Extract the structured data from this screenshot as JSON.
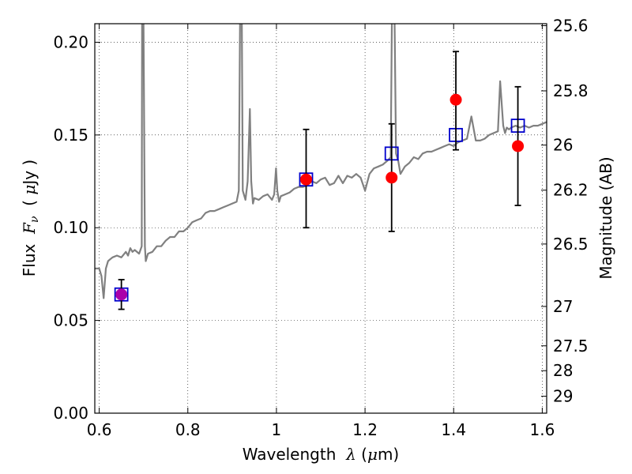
{
  "chart_data": {
    "type": "line",
    "xlabel": {
      "pre": "Wavelength  ",
      "sym": "λ",
      "post": " (",
      "mu": "μ",
      "unit": "m)"
    },
    "ylabel": {
      "pre": "Flux  ",
      "sym": "F",
      "sub": "ν",
      "post": "  ( ",
      "mu": "μ",
      "unit": "Jy )"
    },
    "y2label": "Magnitude (AB)",
    "xlim": [
      0.59,
      1.61
    ],
    "ylim": [
      0.0,
      0.21
    ],
    "grid": true,
    "x_ticks": [
      {
        "v": 0.6,
        "label": "0.6"
      },
      {
        "v": 0.8,
        "label": "0.8"
      },
      {
        "v": 1.0,
        "label": "1"
      },
      {
        "v": 1.2,
        "label": "1.2"
      },
      {
        "v": 1.4,
        "label": "1.4"
      },
      {
        "v": 1.6,
        "label": "1.6"
      }
    ],
    "y_ticks": [
      {
        "v": 0.0,
        "label": "0.00"
      },
      {
        "v": 0.05,
        "label": "0.05"
      },
      {
        "v": 0.1,
        "label": "0.10"
      },
      {
        "v": 0.15,
        "label": "0.15"
      },
      {
        "v": 0.2,
        "label": "0.20"
      }
    ],
    "mag_ticks": [
      {
        "mag": 25.6,
        "label": "25.6"
      },
      {
        "mag": 25.8,
        "label": "25.8"
      },
      {
        "mag": 26.0,
        "label": "26"
      },
      {
        "mag": 26.2,
        "label": "26.2"
      },
      {
        "mag": 26.5,
        "label": "26.5"
      },
      {
        "mag": 27.0,
        "label": "27"
      },
      {
        "mag": 27.5,
        "label": "27.5"
      },
      {
        "mag": 28.0,
        "label": "28"
      },
      {
        "mag": 29.0,
        "label": "29"
      }
    ],
    "series": [
      {
        "kind": "spectrum",
        "color": "#808080",
        "x": [
          0.59,
          0.6,
          0.605,
          0.61,
          0.615,
          0.62,
          0.625,
          0.63,
          0.64,
          0.65,
          0.66,
          0.665,
          0.67,
          0.675,
          0.68,
          0.69,
          0.696,
          0.697,
          0.699,
          0.703,
          0.705,
          0.71,
          0.72,
          0.73,
          0.74,
          0.75,
          0.76,
          0.77,
          0.78,
          0.79,
          0.8,
          0.81,
          0.82,
          0.83,
          0.84,
          0.85,
          0.86,
          0.87,
          0.88,
          0.89,
          0.9,
          0.91,
          0.915,
          0.919,
          0.921,
          0.924,
          0.93,
          0.935,
          0.94,
          0.943,
          0.947,
          0.95,
          0.96,
          0.97,
          0.98,
          0.99,
          0.995,
          0.999,
          1.002,
          1.006,
          1.01,
          1.02,
          1.03,
          1.04,
          1.05,
          1.06,
          1.07,
          1.08,
          1.09,
          1.1,
          1.11,
          1.12,
          1.13,
          1.14,
          1.15,
          1.16,
          1.17,
          1.18,
          1.19,
          1.2,
          1.21,
          1.22,
          1.23,
          1.24,
          1.25,
          1.258,
          1.262,
          1.265,
          1.27,
          1.275,
          1.28,
          1.29,
          1.3,
          1.31,
          1.32,
          1.33,
          1.34,
          1.35,
          1.36,
          1.37,
          1.38,
          1.39,
          1.4,
          1.41,
          1.42,
          1.43,
          1.44,
          1.45,
          1.46,
          1.47,
          1.48,
          1.49,
          1.5,
          1.505,
          1.512,
          1.516,
          1.52,
          1.525,
          1.53,
          1.54,
          1.55,
          1.56,
          1.57,
          1.58,
          1.59,
          1.6,
          1.61
        ],
        "y": [
          0.078,
          0.078,
          0.074,
          0.062,
          0.078,
          0.082,
          0.083,
          0.084,
          0.085,
          0.084,
          0.087,
          0.085,
          0.089,
          0.087,
          0.088,
          0.086,
          0.09,
          0.25,
          0.25,
          0.09,
          0.082,
          0.086,
          0.087,
          0.09,
          0.09,
          0.093,
          0.095,
          0.095,
          0.098,
          0.098,
          0.1,
          0.103,
          0.104,
          0.105,
          0.108,
          0.109,
          0.109,
          0.11,
          0.111,
          0.112,
          0.113,
          0.114,
          0.12,
          0.25,
          0.25,
          0.12,
          0.115,
          0.125,
          0.164,
          0.125,
          0.113,
          0.116,
          0.115,
          0.117,
          0.118,
          0.115,
          0.118,
          0.132,
          0.12,
          0.114,
          0.117,
          0.118,
          0.119,
          0.121,
          0.122,
          0.122,
          0.123,
          0.125,
          0.124,
          0.126,
          0.127,
          0.123,
          0.124,
          0.128,
          0.124,
          0.128,
          0.127,
          0.129,
          0.127,
          0.12,
          0.129,
          0.132,
          0.133,
          0.134,
          0.136,
          0.138,
          0.25,
          0.25,
          0.14,
          0.136,
          0.129,
          0.133,
          0.135,
          0.138,
          0.137,
          0.14,
          0.141,
          0.141,
          0.142,
          0.143,
          0.144,
          0.145,
          0.144,
          0.146,
          0.147,
          0.148,
          0.16,
          0.147,
          0.147,
          0.148,
          0.15,
          0.151,
          0.152,
          0.179,
          0.155,
          0.151,
          0.154,
          0.153,
          0.154,
          0.155,
          0.154,
          0.155,
          0.154,
          0.155,
          0.155,
          0.156,
          0.157
        ]
      },
      {
        "kind": "model-photometry",
        "marker": "square",
        "color": "#0000cc",
        "x": [
          0.65,
          1.067,
          1.26,
          1.405,
          1.545
        ],
        "y": [
          0.064,
          0.126,
          0.14,
          0.15,
          0.155
        ]
      },
      {
        "kind": "observed-photometry",
        "marker": "circle",
        "color": "#ff0000",
        "x": [
          0.65,
          1.067,
          1.26,
          1.405,
          1.545
        ],
        "y": [
          0.064,
          0.126,
          0.127,
          0.169,
          0.144
        ],
        "yerr_low": [
          0.056,
          0.1,
          0.098,
          0.142,
          0.112
        ],
        "yerr_high": [
          0.072,
          0.153,
          0.156,
          0.195,
          0.176
        ],
        "first_point_color": "#aa00aa"
      }
    ]
  }
}
